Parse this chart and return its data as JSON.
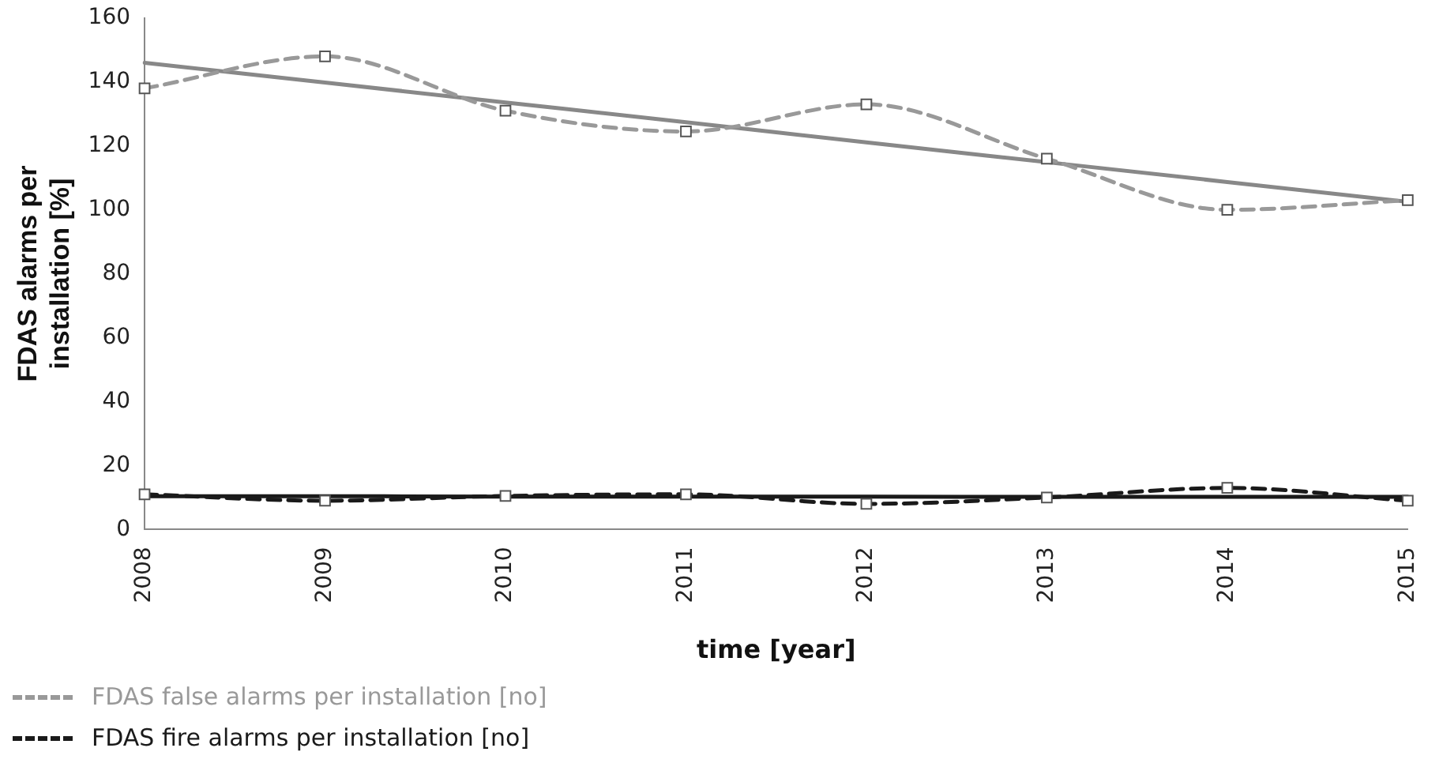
{
  "chart_data": {
    "type": "line",
    "xlabel": "time [year]",
    "ylabel": "FDAS alarms per installation [%]",
    "categories": [
      "2008",
      "2009",
      "2010",
      "2011",
      "2012",
      "2013",
      "2014",
      "2015"
    ],
    "ylim": [
      0,
      160
    ],
    "yticks": [
      0,
      20,
      40,
      60,
      80,
      100,
      120,
      140,
      160
    ],
    "grid": false,
    "legend": "bottom left",
    "series": [
      {
        "name": "FDAS false alarms per installation [no]",
        "color": "#999999",
        "values": [
          138,
          148,
          131,
          124.5,
          133,
          116,
          100,
          103
        ],
        "line_style": "dashed",
        "marker": "square"
      },
      {
        "name": "FDAS fire alarms per installation [no]",
        "color": "#1a1a1a",
        "values": [
          11,
          9,
          10.5,
          11,
          8,
          10,
          13,
          9
        ],
        "line_style": "dashed",
        "marker": "square"
      },
      {
        "color": "#888888",
        "values": [
          146,
          139.8,
          133.6,
          127.4,
          121.1,
          114.9,
          108.7,
          102.5
        ],
        "line_style": "solid",
        "marker": "none"
      },
      {
        "color": "#1a1a1a",
        "values": [
          10.4,
          10.4,
          10.3,
          10.3,
          10.3,
          10.2,
          10.2,
          10.2
        ],
        "line_style": "solid",
        "marker": "none"
      }
    ]
  }
}
